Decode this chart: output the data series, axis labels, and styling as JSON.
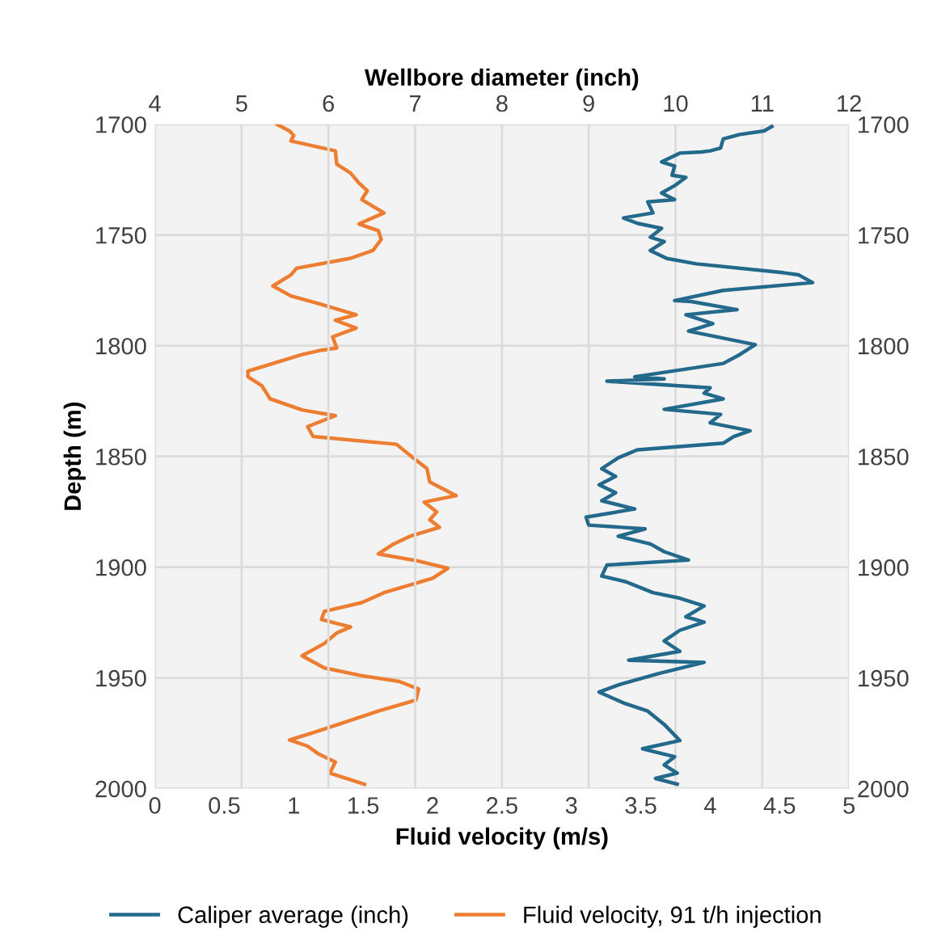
{
  "chart_data": {
    "type": "line",
    "orientation": "horizontal",
    "xlabel": "Fluid velocity (m/s)",
    "x2label": "Wellbore diameter (inch)",
    "ylabel": "Depth (m)",
    "xlim": [
      0,
      5
    ],
    "xticks": [
      0,
      0.5,
      1,
      1.5,
      2,
      2.5,
      3,
      3.5,
      4,
      4.5,
      5
    ],
    "x2lim": [
      4,
      12
    ],
    "x2ticks": [
      4,
      5,
      6,
      7,
      8,
      9,
      10,
      11,
      12
    ],
    "ylim": [
      2000,
      1700
    ],
    "yticks": [
      1700,
      1750,
      1800,
      1850,
      1900,
      1950,
      2000
    ],
    "y2lim": [
      2000,
      1700
    ],
    "y2ticks": [
      1700,
      1750,
      1800,
      1850,
      1900,
      1950,
      2000
    ],
    "grid": true,
    "legend": "bottom",
    "series": [
      {
        "name": "Caliper average (inch)",
        "color": "#23698c",
        "axis": "x2",
        "x": [
          1701,
          1703,
          1704.6,
          1706.6,
          1710.7,
          1712,
          1712.5,
          1713,
          1717,
          1718.8,
          1723,
          1724,
          1727.7,
          1731,
          1734,
          1735,
          1740,
          1742.3,
          1744.7,
          1747,
          1751,
          1753,
          1757,
          1760.6,
          1763,
          1767,
          1768,
          1771.5,
          1775,
          1779.6,
          1780,
          1783.7,
          1786,
          1790,
          1793.4,
          1799.5,
          1804,
          1808,
          1814,
          1815,
          1816,
          1819,
          1821.4,
          1824,
          1828.7,
          1831,
          1834.8,
          1838.4,
          1841,
          1844,
          1847,
          1850.6,
          1855.5,
          1859,
          1862.8,
          1866.4,
          1870,
          1873.7,
          1877.4,
          1881,
          1882.7,
          1886,
          1889.5,
          1893,
          1896.8,
          1899,
          1904,
          1906.6,
          1911.5,
          1914,
          1917.5,
          1922.4,
          1924.8,
          1928.5,
          1933.3,
          1938,
          1942,
          1943,
          1948,
          1952.8,
          1956.4,
          1961.3,
          1965,
          1971,
          1978.3,
          1982,
          1985.6,
          1989.3,
          1993,
          1995.4,
          1998
        ],
        "values": [
          11.11,
          11.02,
          10.74,
          10.55,
          10.52,
          10.4,
          10.3,
          10.05,
          9.84,
          9.99,
          9.96,
          10.12,
          9.99,
          9.84,
          9.99,
          9.68,
          9.74,
          9.4,
          9.56,
          9.84,
          9.71,
          9.87,
          9.71,
          9.9,
          10.24,
          11.24,
          11.42,
          11.58,
          10.55,
          9.99,
          10.18,
          10.71,
          10.12,
          10.43,
          10.15,
          10.92,
          10.74,
          10.55,
          9.53,
          9.87,
          9.21,
          10.4,
          10.33,
          10.55,
          9.87,
          10.52,
          10.4,
          10.86,
          10.67,
          10.55,
          9.56,
          9.34,
          9.15,
          9.31,
          9.12,
          9.31,
          9.15,
          9.53,
          8.97,
          9.0,
          9.65,
          9.34,
          9.71,
          9.87,
          10.15,
          9.21,
          9.15,
          9.43,
          9.74,
          10.05,
          10.33,
          10.12,
          10.33,
          10.05,
          9.87,
          10.05,
          9.46,
          10.33,
          9.81,
          9.37,
          9.12,
          9.4,
          9.68,
          9.87,
          10.05,
          9.62,
          9.99,
          9.87,
          10.02,
          9.77,
          10.02
        ]
      },
      {
        "name": "Fluid velocity, 91 t/h injection",
        "color": "#ed7d31",
        "x": [
          1700,
          1703,
          1705,
          1707.5,
          1712,
          1718,
          1722,
          1726.5,
          1730,
          1734,
          1740,
          1745,
          1748,
          1752,
          1757,
          1760.5,
          1765,
          1768,
          1773,
          1777.5,
          1781,
          1786,
          1788.5,
          1792,
          1796,
          1801,
          1802,
          1804,
          1811.5,
          1814,
          1818,
          1824,
          1829,
          1831.6,
          1836.5,
          1841,
          1844.5,
          1850.6,
          1855.5,
          1861.5,
          1867.7,
          1870.6,
          1875,
          1878.6,
          1882,
          1886,
          1889.5,
          1894,
          1897,
          1900.5,
          1905,
          1911.5,
          1916,
          1920,
          1923.6,
          1927,
          1929.7,
          1934.5,
          1940,
          1945.5,
          1949,
          1951.6,
          1955,
          1960,
          1965,
          1970,
          1974.7,
          1978,
          1980.8,
          1984.4,
          1988,
          1993,
          1998
        ],
        "values": [
          0.88,
          0.97,
          1.0,
          0.98,
          1.3,
          1.31,
          1.41,
          1.47,
          1.53,
          1.49,
          1.65,
          1.47,
          1.61,
          1.63,
          1.57,
          1.41,
          1.02,
          0.98,
          0.85,
          0.98,
          1.18,
          1.45,
          1.3,
          1.45,
          1.28,
          1.31,
          1.2,
          1.06,
          0.67,
          0.67,
          0.77,
          0.83,
          1.06,
          1.3,
          1.1,
          1.14,
          1.74,
          1.86,
          1.96,
          1.98,
          2.17,
          1.94,
          2.03,
          1.98,
          2.05,
          1.84,
          1.72,
          1.61,
          1.88,
          2.11,
          2.0,
          1.65,
          1.49,
          1.22,
          1.2,
          1.41,
          1.31,
          1.22,
          1.06,
          1.22,
          1.49,
          1.76,
          1.9,
          1.88,
          1.61,
          1.37,
          1.14,
          0.97,
          1.1,
          1.18,
          1.3,
          1.26,
          1.51
        ]
      }
    ]
  }
}
